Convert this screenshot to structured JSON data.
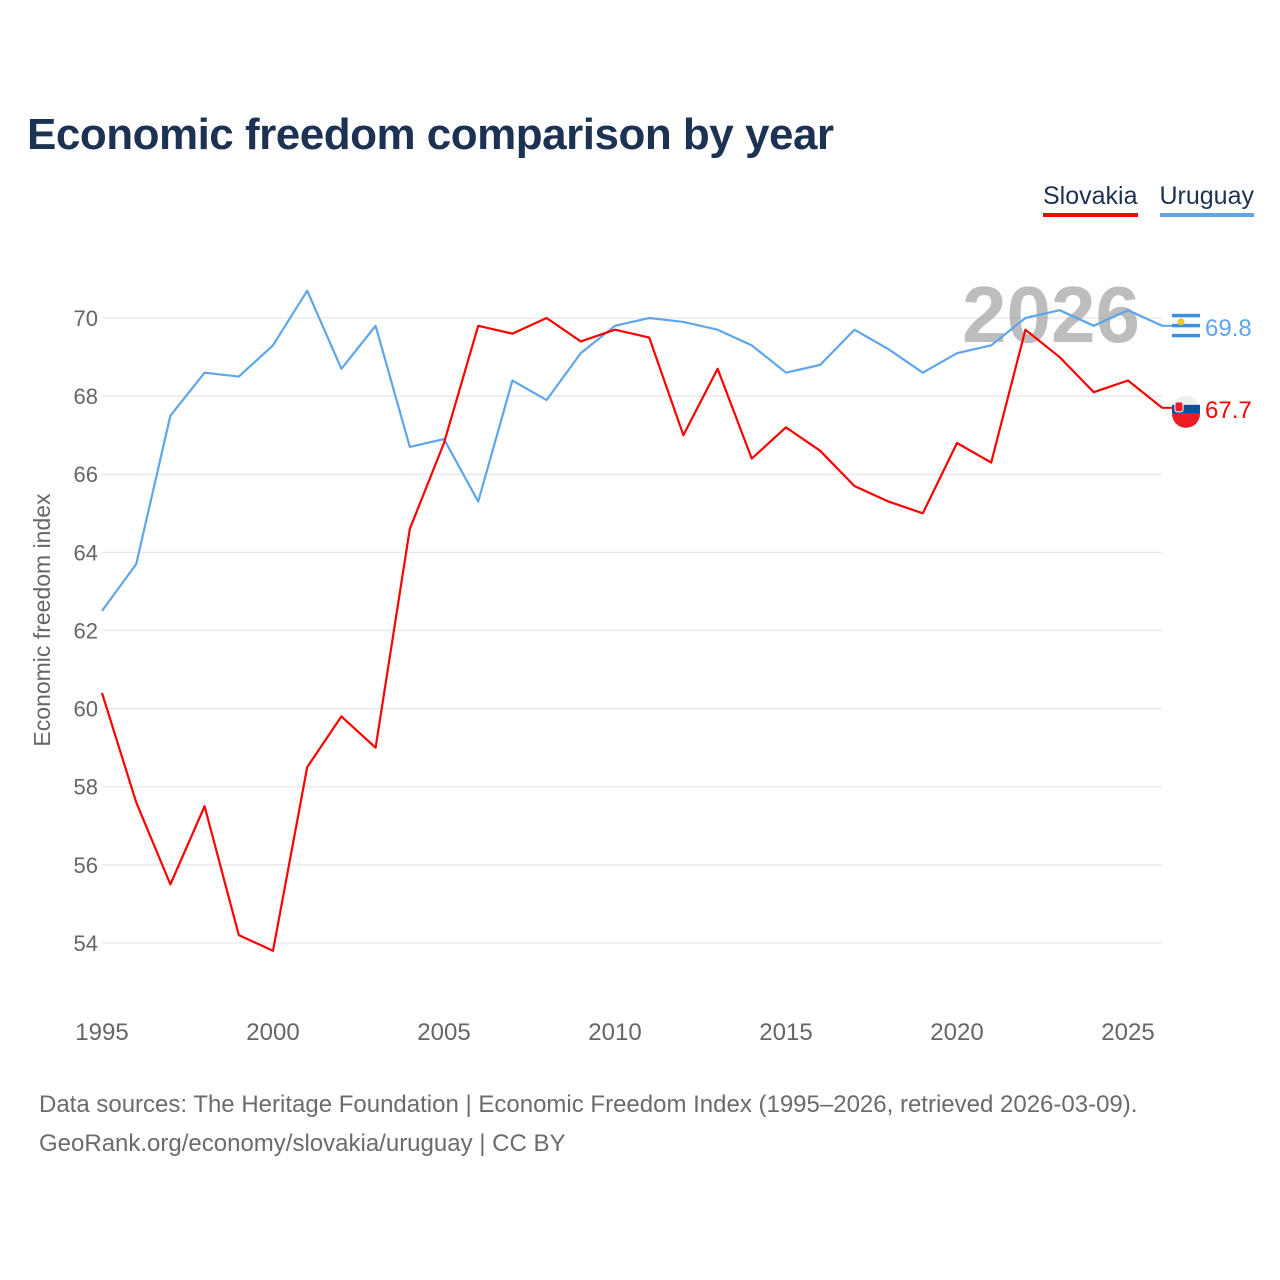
{
  "title": "Economic freedom comparison by year",
  "legend": [
    {
      "label": "Slovakia",
      "color": "#ff0000"
    },
    {
      "label": "Uruguay",
      "color": "#5fa5ea"
    }
  ],
  "footer": {
    "line1": "Data sources: The Heritage Foundation | Economic Freedom Index (1995–2026, retrieved 2026-03-09).",
    "line2": "GeoRank.org/economy/slovakia/uruguay | CC BY"
  },
  "chart_data": {
    "type": "line",
    "title": "Economic freedom comparison by year",
    "ylabel": "Economic freedom index",
    "xlabel": "",
    "year_watermark": "2026",
    "x": [
      1995,
      1996,
      1997,
      1998,
      1999,
      2000,
      2001,
      2002,
      2003,
      2004,
      2005,
      2006,
      2007,
      2008,
      2009,
      2010,
      2011,
      2012,
      2013,
      2014,
      2015,
      2016,
      2017,
      2018,
      2019,
      2020,
      2021,
      2022,
      2023,
      2024,
      2025,
      2026
    ],
    "xticks": [
      "1995",
      "2000",
      "2005",
      "2010",
      "2015",
      "2020",
      "2025"
    ],
    "yticks": [
      "54",
      "56",
      "58",
      "60",
      "62",
      "64",
      "66",
      "68",
      "70"
    ],
    "ylim": [
      52.6,
      71.5
    ],
    "series": [
      {
        "name": "Slovakia",
        "color": "#ff0000",
        "end_label": "67.7",
        "values": [
          60.4,
          57.6,
          55.5,
          57.5,
          54.2,
          53.8,
          58.5,
          59.8,
          59.0,
          64.6,
          66.8,
          69.8,
          69.6,
          70.0,
          69.4,
          69.7,
          69.5,
          67.0,
          68.7,
          66.4,
          67.2,
          66.6,
          65.7,
          65.3,
          65.0,
          66.8,
          66.3,
          69.7,
          69.0,
          68.1,
          68.4,
          67.7
        ]
      },
      {
        "name": "Uruguay",
        "color": "#5fa5ea",
        "end_label": "69.8",
        "values": [
          62.5,
          63.7,
          67.5,
          68.6,
          68.5,
          69.3,
          70.7,
          68.7,
          69.8,
          66.7,
          66.9,
          65.3,
          68.4,
          67.9,
          69.1,
          69.8,
          70.0,
          69.9,
          69.7,
          69.3,
          68.6,
          68.8,
          69.7,
          69.2,
          68.6,
          69.1,
          69.3,
          70.0,
          70.2,
          69.8,
          70.2,
          69.8
        ]
      }
    ],
    "grid": true,
    "legend_position": "top-right"
  }
}
